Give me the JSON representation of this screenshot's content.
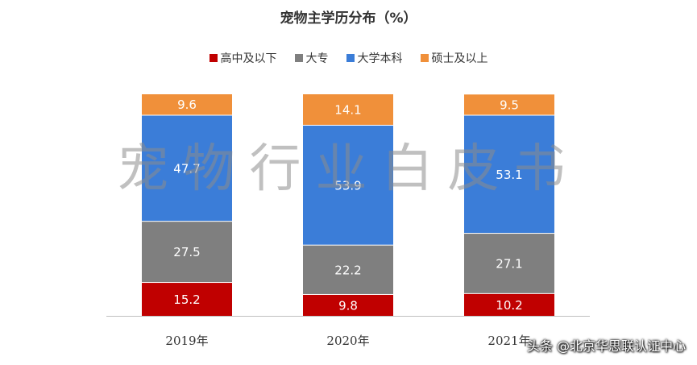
{
  "chart_data": {
    "type": "bar",
    "stacked": true,
    "title": "宠物主学历分布（%）",
    "categories": [
      "2019年",
      "2020年",
      "2021年"
    ],
    "series": [
      {
        "name": "高中及以下",
        "color": "#c00000",
        "values": [
          15.2,
          9.8,
          10.2
        ]
      },
      {
        "name": "大专",
        "color": "#7f7f7f",
        "values": [
          27.5,
          22.2,
          27.1
        ]
      },
      {
        "name": "大学本科",
        "color": "#3b7dd8",
        "values": [
          47.7,
          53.9,
          53.1
        ]
      },
      {
        "name": "硕士及以上",
        "color": "#f0903a",
        "values": [
          9.6,
          14.1,
          9.5
        ]
      }
    ],
    "ylim": [
      0,
      100
    ],
    "xlabel": "",
    "ylabel": "",
    "legend_position": "top"
  },
  "watermark": "宠物行业白皮书",
  "footer_credit": "头条 @北京华思联认证中心"
}
